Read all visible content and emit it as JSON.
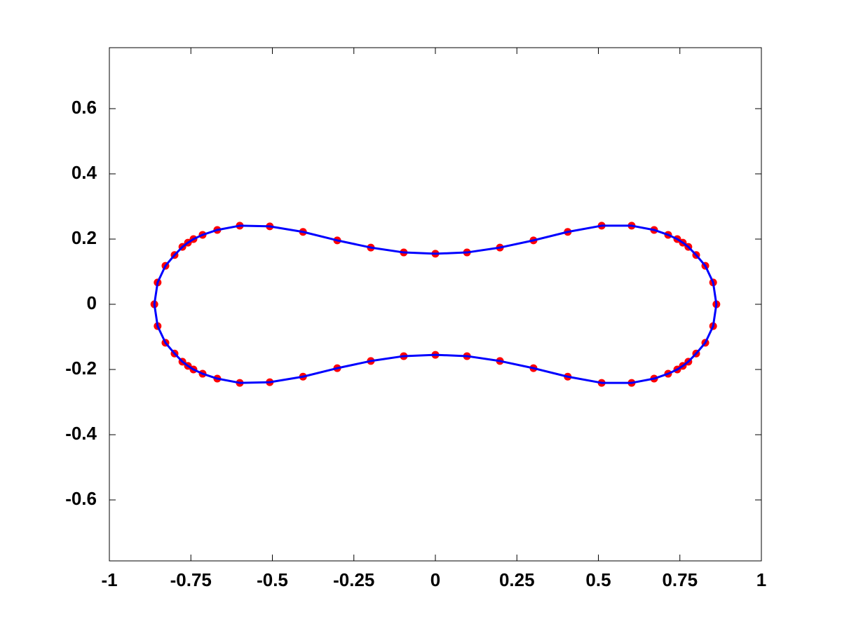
{
  "chart_data": {
    "type": "line",
    "closed": true,
    "xlim": [
      -1,
      1
    ],
    "ylim": [
      -0.787,
      0.787
    ],
    "xticks": [
      -1,
      -0.75,
      -0.5,
      -0.25,
      0,
      0.25,
      0.5,
      0.75,
      1
    ],
    "yticks": [
      -0.6,
      -0.4,
      -0.2,
      0,
      0.2,
      0.4,
      0.6
    ],
    "grid": false,
    "series": [
      {
        "color": "#0000ff",
        "marker_color": "#ff0000",
        "x": [
          -0.862,
          -0.852,
          -0.828,
          -0.8,
          -0.776,
          -0.759,
          -0.742,
          -0.714,
          -0.669,
          -0.6,
          -0.508,
          -0.406,
          -0.301,
          -0.198,
          -0.097,
          0,
          0.097,
          0.198,
          0.301,
          0.406,
          0.51,
          0.602,
          0.671,
          0.714,
          0.742,
          0.759,
          0.776,
          0.8,
          0.828,
          0.852,
          0.862,
          0.852,
          0.828,
          0.8,
          0.776,
          0.759,
          0.742,
          0.714,
          0.671,
          0.602,
          0.51,
          0.406,
          0.301,
          0.198,
          0.097,
          0,
          -0.097,
          -0.198,
          -0.301,
          -0.406,
          -0.508,
          -0.6,
          -0.669,
          -0.714,
          -0.742,
          -0.759,
          -0.776,
          -0.8,
          -0.828,
          -0.852
        ],
        "values": [
          0,
          0.067,
          0.118,
          0.151,
          0.176,
          0.189,
          0.2,
          0.213,
          0.228,
          0.241,
          0.239,
          0.222,
          0.196,
          0.174,
          0.159,
          0.155,
          0.159,
          0.174,
          0.196,
          0.222,
          0.241,
          0.241,
          0.228,
          0.213,
          0.2,
          0.189,
          0.176,
          0.151,
          0.118,
          0.067,
          0,
          -0.067,
          -0.118,
          -0.151,
          -0.176,
          -0.189,
          -0.2,
          -0.213,
          -0.228,
          -0.241,
          -0.241,
          -0.222,
          -0.196,
          -0.174,
          -0.159,
          -0.155,
          -0.159,
          -0.174,
          -0.196,
          -0.222,
          -0.239,
          -0.241,
          -0.228,
          -0.213,
          -0.2,
          -0.189,
          -0.176,
          -0.151,
          -0.118,
          -0.067
        ]
      }
    ]
  }
}
